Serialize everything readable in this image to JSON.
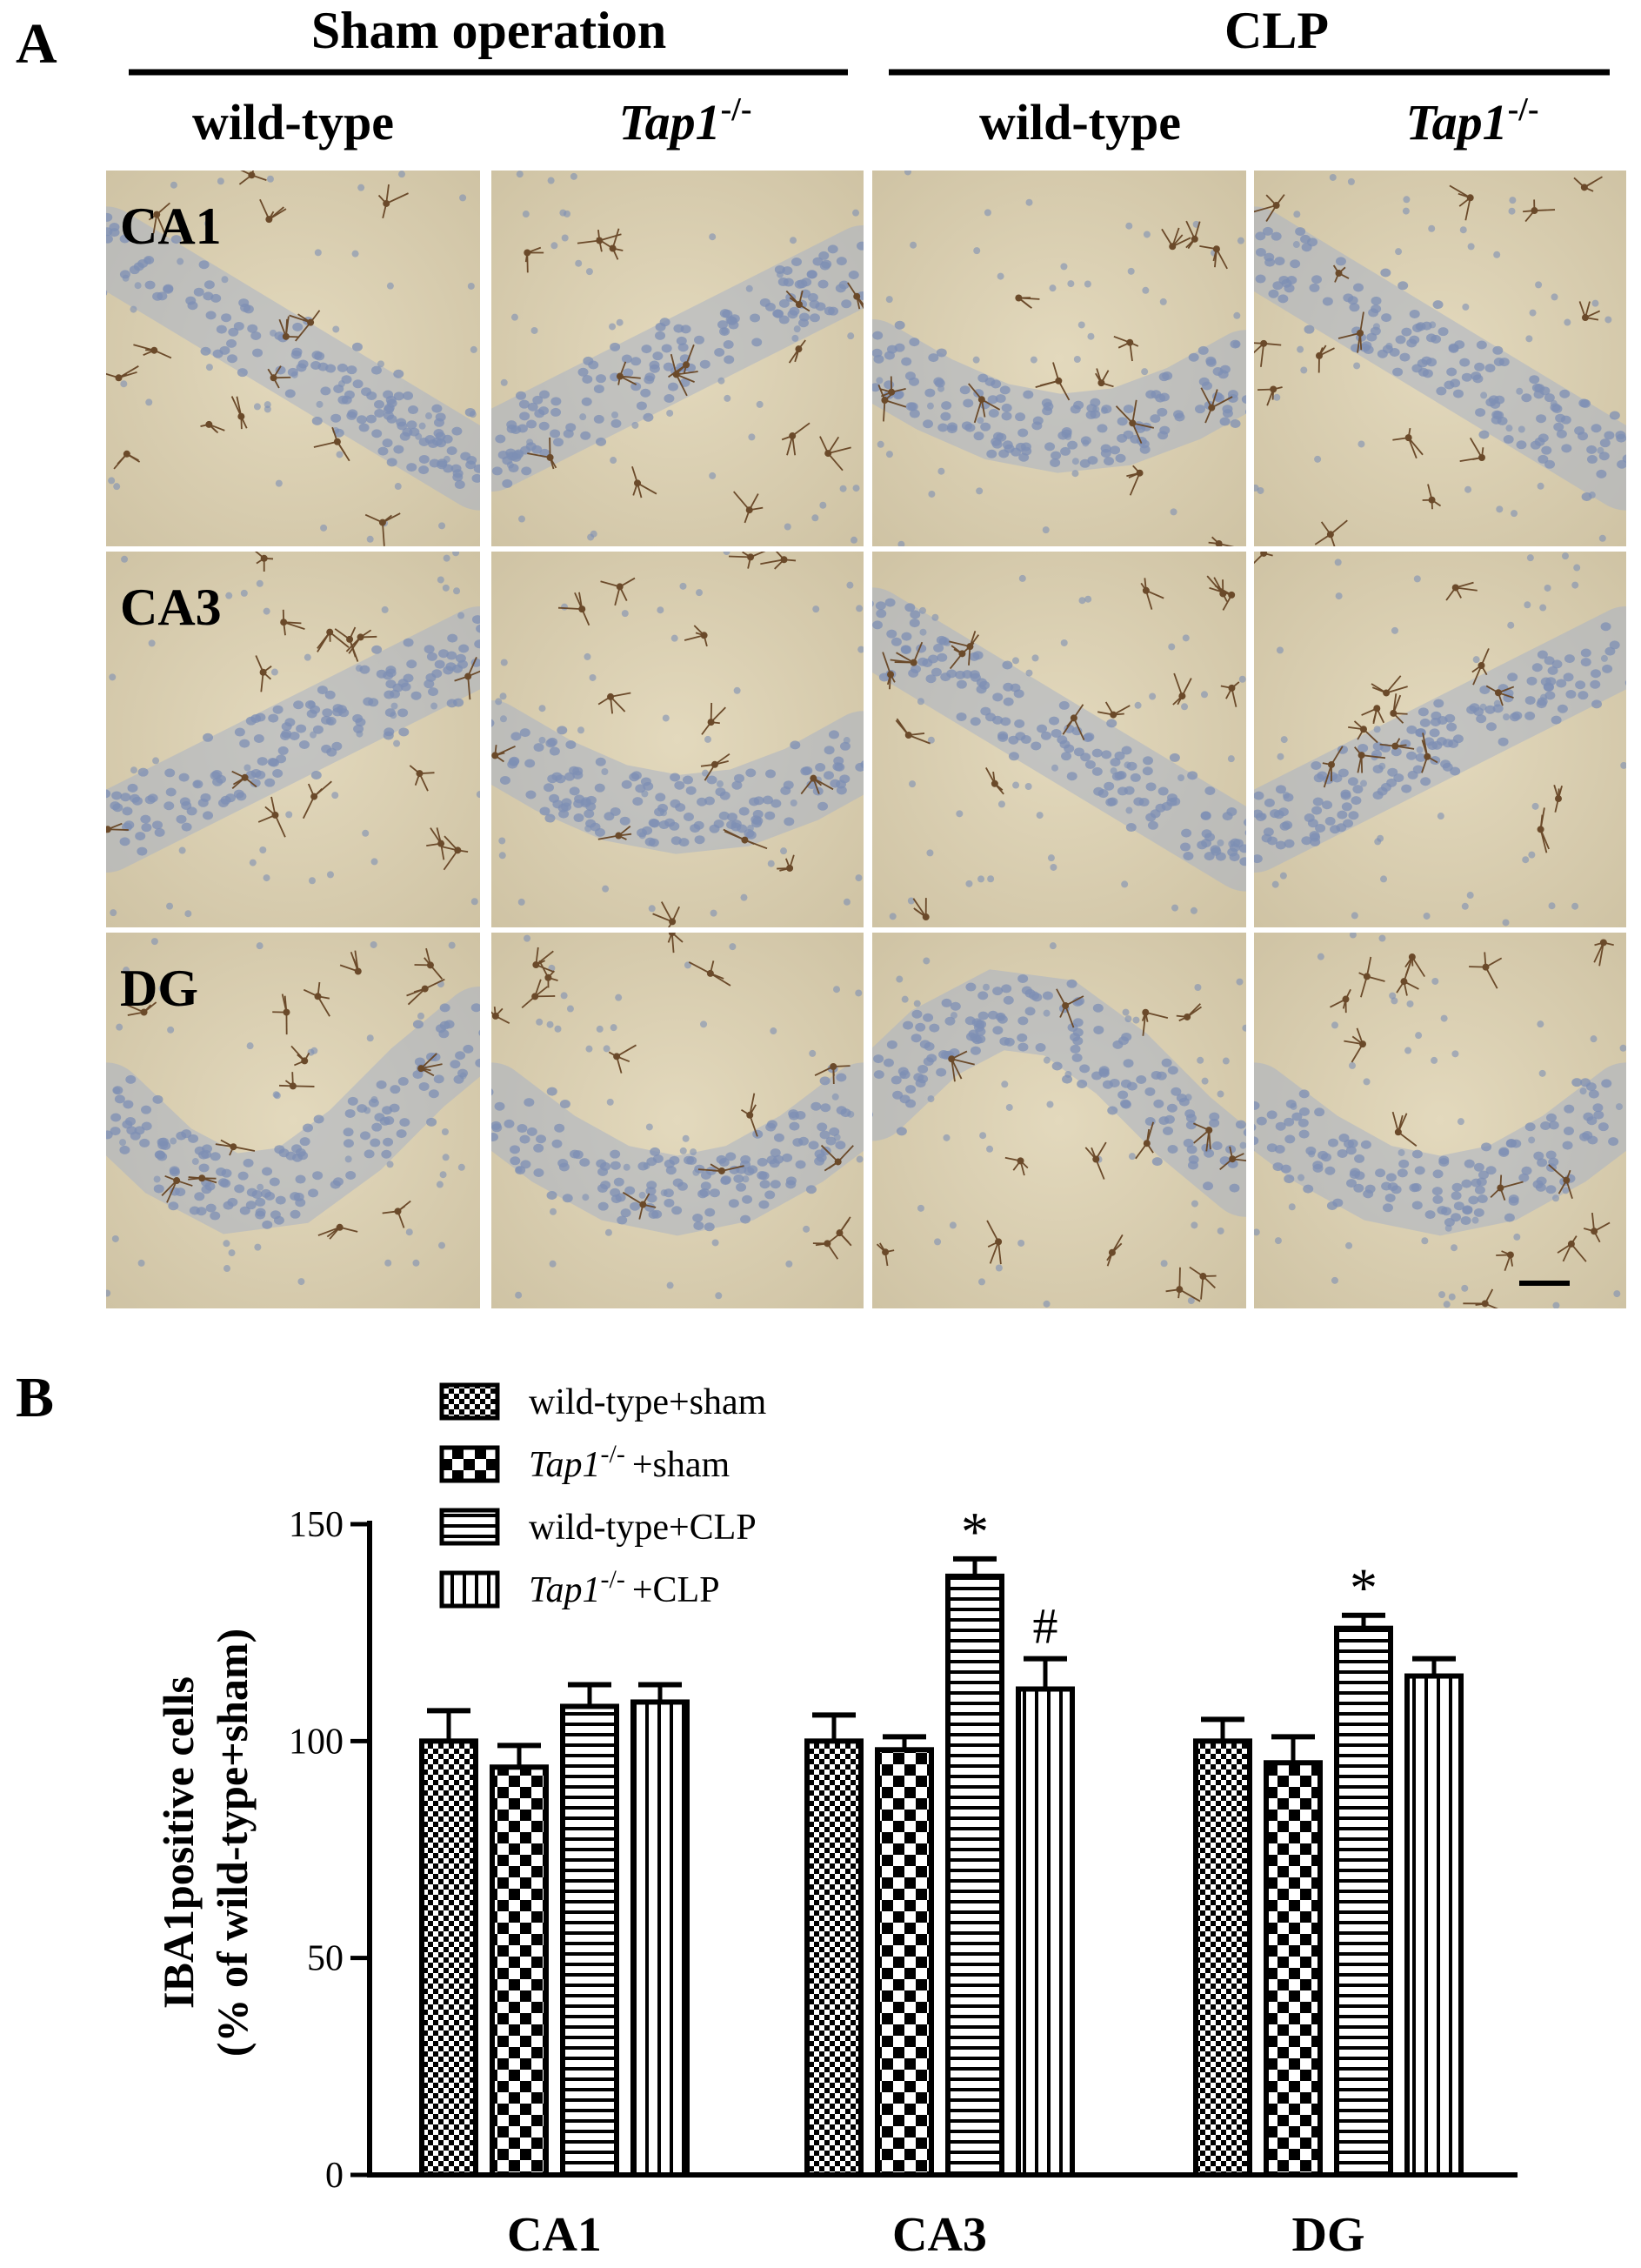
{
  "panel_a": {
    "label": "A",
    "group_headers": [
      "Sham operation",
      "CLP"
    ],
    "columns": [
      {
        "text": "wild-type",
        "italic": false,
        "sup": ""
      },
      {
        "text": "Tap1",
        "italic": true,
        "sup": "-/-"
      },
      {
        "text": "wild-type",
        "italic": false,
        "sup": ""
      },
      {
        "text": "Tap1",
        "italic": true,
        "sup": "-/-"
      }
    ],
    "rows": [
      "CA1",
      "CA3",
      "DG"
    ]
  },
  "panel_b": {
    "label": "B"
  },
  "chart_data": {
    "type": "bar",
    "categories": [
      "CA1",
      "CA3",
      "DG"
    ],
    "ylabel": "IBA1positive cells",
    "ylabel2": "(% of wild-type+sham)",
    "ylim": [
      0,
      150
    ],
    "yticks": [
      "0",
      "50",
      "100",
      "150"
    ],
    "grid": false,
    "legend_position": "top-left",
    "series": [
      {
        "name": "wild-type+sham",
        "legend_main": "wild-type",
        "legend_sup": "",
        "legend_suffix": "+sham",
        "pattern": "checker-small",
        "values": [
          100,
          100,
          100
        ],
        "errors": [
          7,
          6,
          5
        ],
        "annotations": [
          "",
          "",
          ""
        ]
      },
      {
        "name": "Tap1-/- +sham",
        "legend_main": "Tap1",
        "legend_sup": "-/-",
        "legend_suffix": "+sham",
        "pattern": "checker-large",
        "values": [
          94,
          98,
          95
        ],
        "errors": [
          5,
          3,
          6
        ],
        "annotations": [
          "",
          "",
          ""
        ]
      },
      {
        "name": "wild-type+CLP",
        "legend_main": "wild-type",
        "legend_sup": "",
        "legend_suffix": "+CLP",
        "pattern": "horizontal",
        "values": [
          108,
          138,
          126
        ],
        "errors": [
          5,
          4,
          3
        ],
        "annotations": [
          "",
          "*",
          "*"
        ]
      },
      {
        "name": "Tap1-/- +CLP",
        "legend_main": "Tap1",
        "legend_sup": "-/-",
        "legend_suffix": "+CLP",
        "pattern": "vertical",
        "values": [
          109,
          112,
          115
        ],
        "errors": [
          4,
          7,
          4
        ],
        "annotations": [
          "",
          "#",
          ""
        ]
      }
    ]
  },
  "colors": {
    "background": "#ffffff",
    "ink": "#000000",
    "tissue": "#d8cdb0",
    "nuclei": "#7d8fb4",
    "microglia": "#6b4a2a"
  }
}
